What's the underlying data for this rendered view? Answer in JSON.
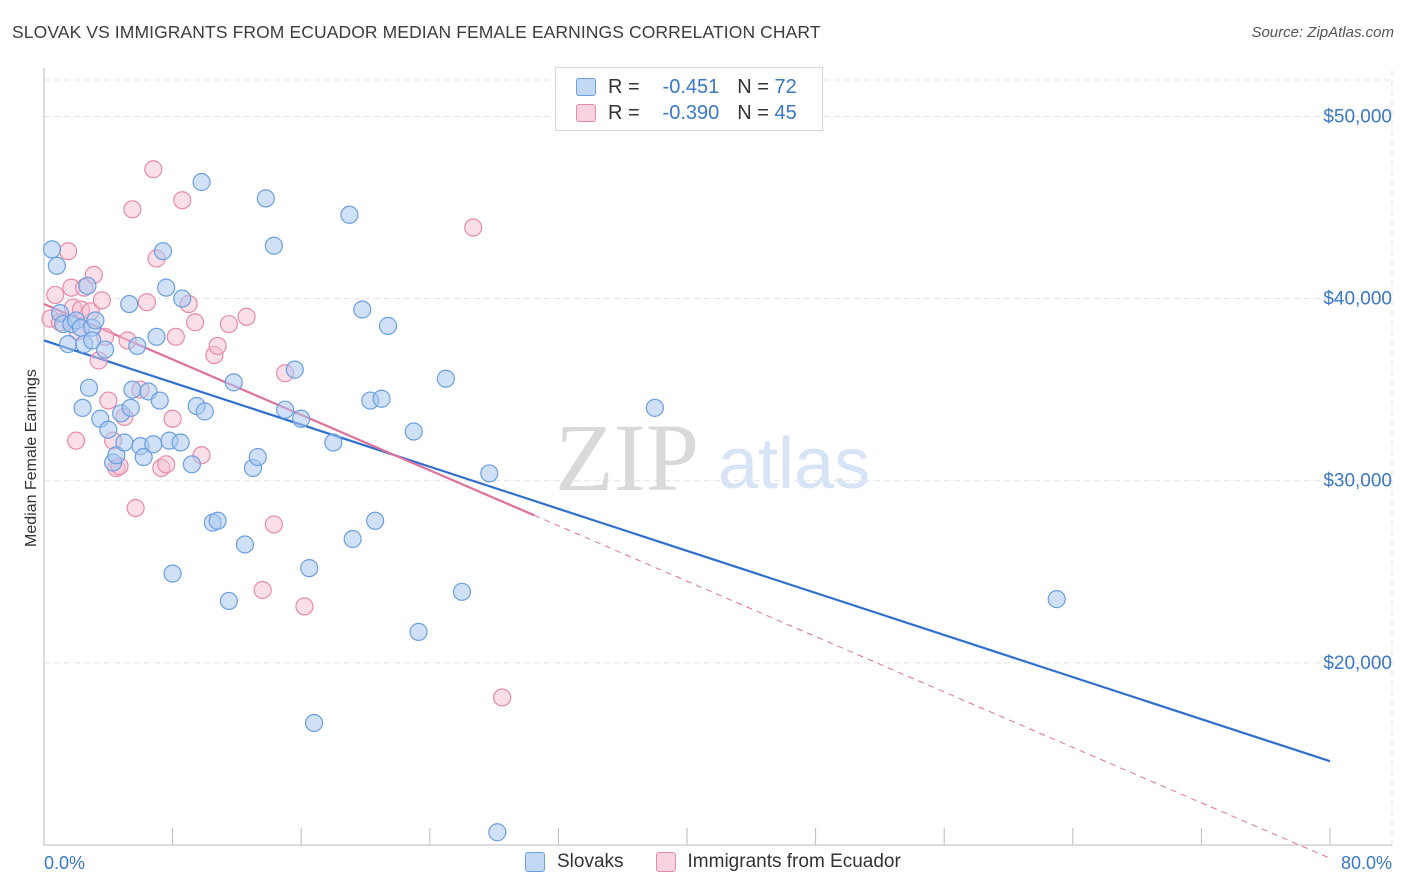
{
  "title": "SLOVAK VS IMMIGRANTS FROM ECUADOR MEDIAN FEMALE EARNINGS CORRELATION CHART",
  "source": "Source: ZipAtlas.com",
  "watermark": {
    "zip": "ZIP",
    "atlas": "atlas"
  },
  "legend_stats": [
    {
      "r_label": "R =",
      "r_value": "-0.451",
      "n_label": "N =",
      "n_value": "72"
    },
    {
      "r_label": "R =",
      "r_value": "-0.390",
      "n_label": "N =",
      "n_value": "45"
    }
  ],
  "colors": {
    "blue_fill": "#a9c9f1",
    "blue_stroke": "#6b9fe0",
    "blue_line": "#2f6fcf",
    "pink_fill": "#f7bfd1",
    "pink_stroke": "#e88aa8",
    "pink_line": "#e0709a",
    "axis_text": "#3a77c9",
    "grid": "#e3e3e3"
  },
  "chart_data": {
    "type": "scatter",
    "title": "SLOVAK VS IMMIGRANTS FROM ECUADOR MEDIAN FEMALE EARNINGS CORRELATION CHART",
    "xlabel": "",
    "ylabel": "Median Female Earnings",
    "xlim": [
      0,
      80
    ],
    "ylim": [
      10000,
      52000
    ],
    "x_tick_labels": [
      "0.0%",
      "80.0%"
    ],
    "y_ticks": [
      20000,
      30000,
      40000,
      50000
    ],
    "y_tick_labels": [
      "$20,000",
      "$30,000",
      "$40,000",
      "$50,000"
    ],
    "grid": true,
    "legend_position": "top-center",
    "series": [
      {
        "name": "Slovaks",
        "points": [
          [
            0.5,
            42700
          ],
          [
            0.8,
            41800
          ],
          [
            1.0,
            39200
          ],
          [
            1.2,
            38600
          ],
          [
            1.5,
            37500
          ],
          [
            1.7,
            38600
          ],
          [
            2.0,
            38800
          ],
          [
            2.3,
            38400
          ],
          [
            2.5,
            37500
          ],
          [
            2.7,
            40700
          ],
          [
            2.8,
            35100
          ],
          [
            3.0,
            38400
          ],
          [
            3.0,
            37700
          ],
          [
            3.2,
            38800
          ],
          [
            3.5,
            33400
          ],
          [
            3.8,
            37200
          ],
          [
            4.0,
            32800
          ],
          [
            4.3,
            31000
          ],
          [
            4.5,
            31400
          ],
          [
            4.8,
            33700
          ],
          [
            5.0,
            32100
          ],
          [
            5.3,
            39700
          ],
          [
            5.5,
            35000
          ],
          [
            5.8,
            37400
          ],
          [
            6.0,
            31900
          ],
          [
            6.2,
            31300
          ],
          [
            6.5,
            34900
          ],
          [
            7.0,
            37900
          ],
          [
            7.2,
            34400
          ],
          [
            7.4,
            42600
          ],
          [
            7.6,
            40600
          ],
          [
            7.8,
            32200
          ],
          [
            8.0,
            24900
          ],
          [
            8.5,
            32100
          ],
          [
            8.6,
            40000
          ],
          [
            9.2,
            30900
          ],
          [
            9.5,
            34100
          ],
          [
            9.8,
            46400
          ],
          [
            10.0,
            33800
          ],
          [
            10.5,
            27700
          ],
          [
            10.8,
            27800
          ],
          [
            11.5,
            23400
          ],
          [
            11.8,
            35400
          ],
          [
            12.5,
            26500
          ],
          [
            13.0,
            30700
          ],
          [
            13.3,
            31300
          ],
          [
            13.8,
            45500
          ],
          [
            14.3,
            42900
          ],
          [
            15.0,
            33900
          ],
          [
            15.6,
            36100
          ],
          [
            16.0,
            33400
          ],
          [
            16.5,
            25200
          ],
          [
            16.8,
            16700
          ],
          [
            18.0,
            32100
          ],
          [
            19.0,
            44600
          ],
          [
            19.2,
            26800
          ],
          [
            19.8,
            39400
          ],
          [
            20.3,
            34400
          ],
          [
            20.6,
            27800
          ],
          [
            21.0,
            34500
          ],
          [
            21.4,
            38500
          ],
          [
            23.0,
            32700
          ],
          [
            23.3,
            21700
          ],
          [
            25.0,
            35600
          ],
          [
            26.0,
            23900
          ],
          [
            27.7,
            30400
          ],
          [
            28.2,
            10700
          ],
          [
            38.0,
            34000
          ],
          [
            63.0,
            23500
          ],
          [
            5.4,
            34000
          ],
          [
            2.4,
            34000
          ],
          [
            6.8,
            32000
          ]
        ]
      },
      {
        "name": "Immigrants from Ecuador",
        "points": [
          [
            0.4,
            38900
          ],
          [
            0.7,
            40200
          ],
          [
            1.0,
            38700
          ],
          [
            1.5,
            42600
          ],
          [
            1.7,
            40600
          ],
          [
            1.8,
            39500
          ],
          [
            2.1,
            38200
          ],
          [
            2.3,
            39400
          ],
          [
            2.5,
            40600
          ],
          [
            2.9,
            39300
          ],
          [
            3.1,
            41300
          ],
          [
            3.4,
            36600
          ],
          [
            3.6,
            39900
          ],
          [
            3.8,
            37900
          ],
          [
            4.0,
            34400
          ],
          [
            4.3,
            32200
          ],
          [
            4.5,
            30700
          ],
          [
            4.7,
            30800
          ],
          [
            5.0,
            33500
          ],
          [
            5.2,
            37700
          ],
          [
            5.5,
            44900
          ],
          [
            5.7,
            28500
          ],
          [
            6.0,
            35000
          ],
          [
            6.4,
            39800
          ],
          [
            6.8,
            47100
          ],
          [
            7.0,
            42200
          ],
          [
            7.3,
            30700
          ],
          [
            7.6,
            30900
          ],
          [
            8.0,
            33400
          ],
          [
            8.2,
            37900
          ],
          [
            8.6,
            45400
          ],
          [
            9.0,
            39700
          ],
          [
            9.4,
            38700
          ],
          [
            9.8,
            31400
          ],
          [
            10.6,
            36900
          ],
          [
            10.8,
            37400
          ],
          [
            11.5,
            38600
          ],
          [
            12.6,
            39000
          ],
          [
            13.6,
            24000
          ],
          [
            14.3,
            27600
          ],
          [
            15.0,
            35900
          ],
          [
            16.2,
            23100
          ],
          [
            26.7,
            43900
          ],
          [
            28.5,
            18100
          ],
          [
            2.0,
            32200
          ]
        ]
      }
    ],
    "trend_lines": [
      {
        "series": "Slovaks",
        "x": [
          0,
          80
        ],
        "y": [
          37700,
          14600
        ]
      },
      {
        "series": "Immigrants from Ecuador",
        "x": [
          0,
          30.5
        ],
        "y": [
          39700,
          28100
        ],
        "dashed_extension_to_x": 80
      }
    ]
  }
}
